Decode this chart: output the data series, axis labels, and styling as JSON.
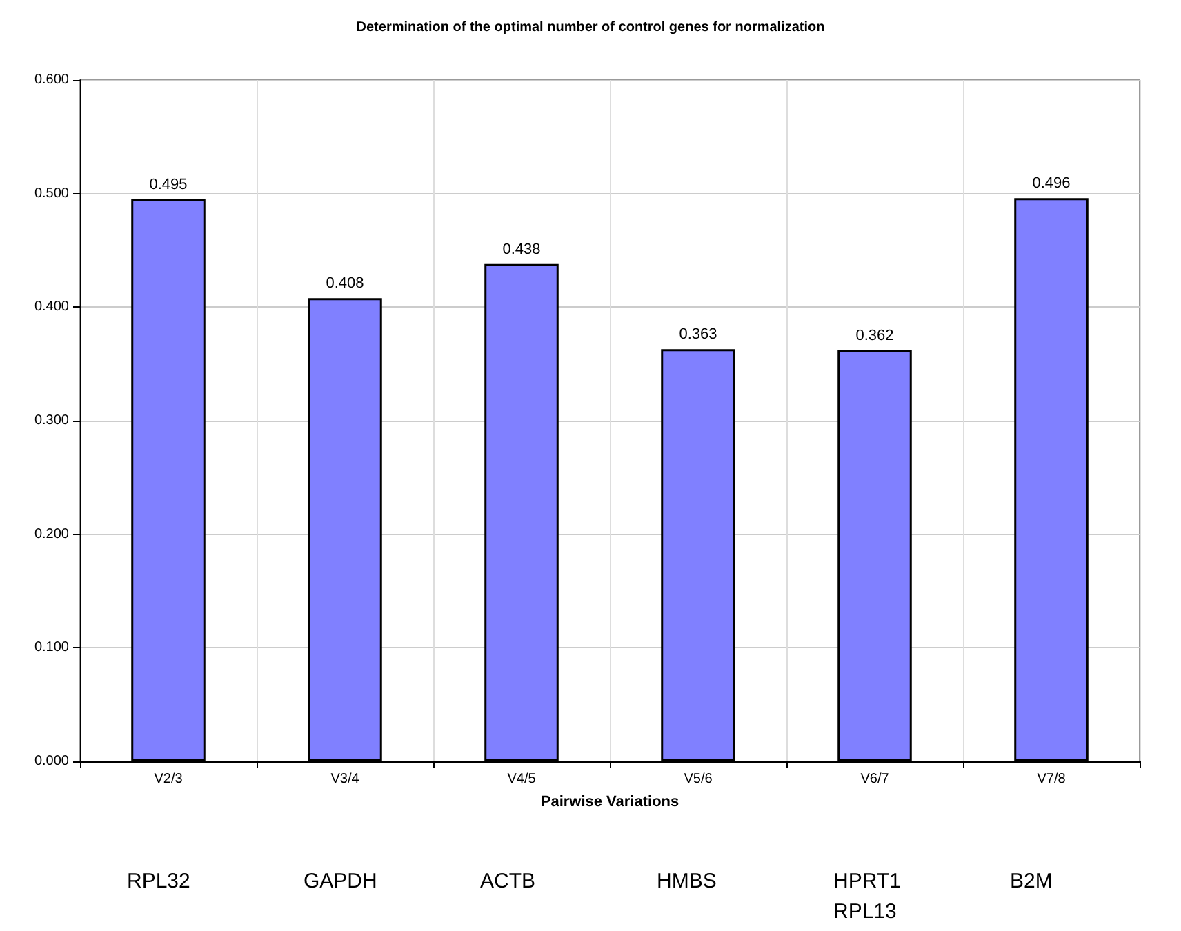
{
  "chart_data": {
    "type": "bar",
    "title": "Determination of the optimal number of control genes for normalization",
    "xlabel": "Pairwise Variations",
    "categories": [
      "V2/3",
      "V3/4",
      "V4/5",
      "V5/6",
      "V6/7",
      "V7/8"
    ],
    "values": [
      0.495,
      0.408,
      0.438,
      0.363,
      0.362,
      0.496
    ],
    "color": "#8080ff",
    "data_labels": true,
    "ylim": [
      0,
      0.6
    ],
    "yticks": [
      {
        "value": 0,
        "label": "0.000"
      },
      {
        "value": 0.1,
        "label": "0.100"
      },
      {
        "value": 0.2,
        "label": "0.200"
      },
      {
        "value": 0.3,
        "label": "0.300"
      },
      {
        "value": 0.4,
        "label": "0.400"
      },
      {
        "value": 0.5,
        "label": "0.500"
      },
      {
        "value": 0.6,
        "label": "0.600"
      }
    ],
    "grid": true,
    "annotations": [
      "RPL32",
      "GAPDH",
      "ACTB",
      "HMBS",
      "HPRT1\nRPL13",
      "B2M"
    ]
  }
}
